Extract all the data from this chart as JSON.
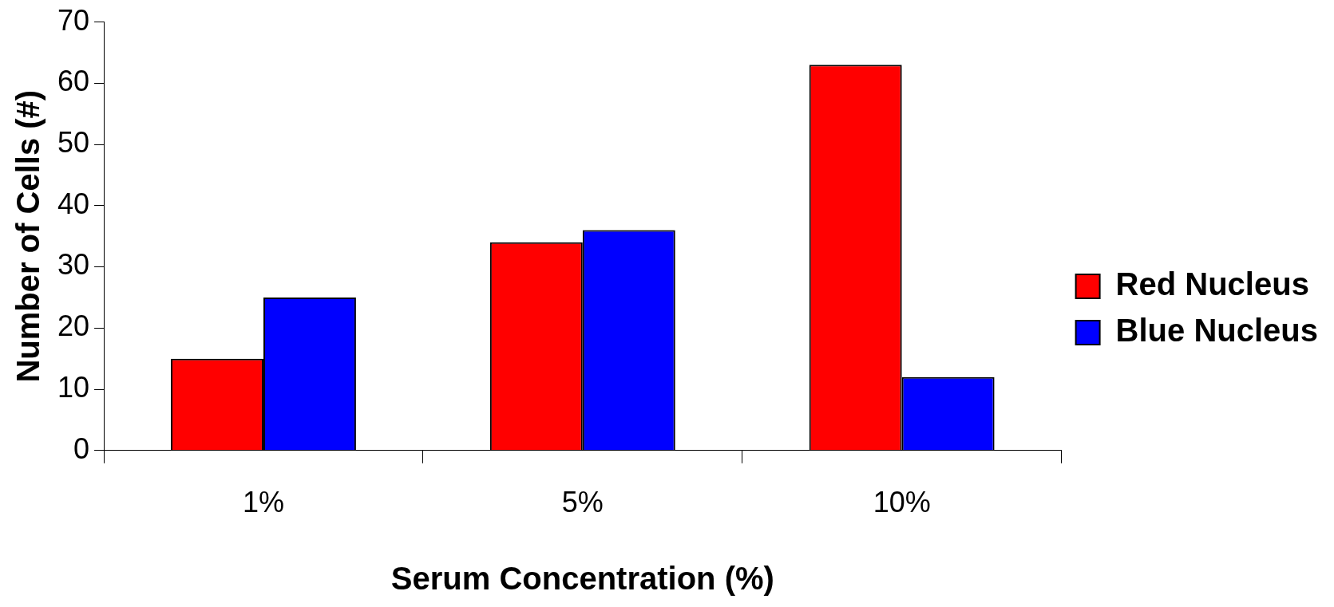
{
  "chart_data": {
    "type": "bar",
    "xlabel": "Serum Concentration (%)",
    "ylabel": "Number of Cells (#)",
    "categories": [
      "1%",
      "5%",
      "10%"
    ],
    "series": [
      {
        "name": "Red Nucleus",
        "color": "#ff0000",
        "values": [
          15,
          34,
          63
        ]
      },
      {
        "name": "Blue Nucleus",
        "color": "#0000ff",
        "values": [
          25,
          36,
          12
        ]
      }
    ],
    "ylim": [
      0,
      70
    ],
    "yticks": [
      0,
      10,
      20,
      30,
      40,
      50,
      60,
      70
    ],
    "legend": "right"
  }
}
